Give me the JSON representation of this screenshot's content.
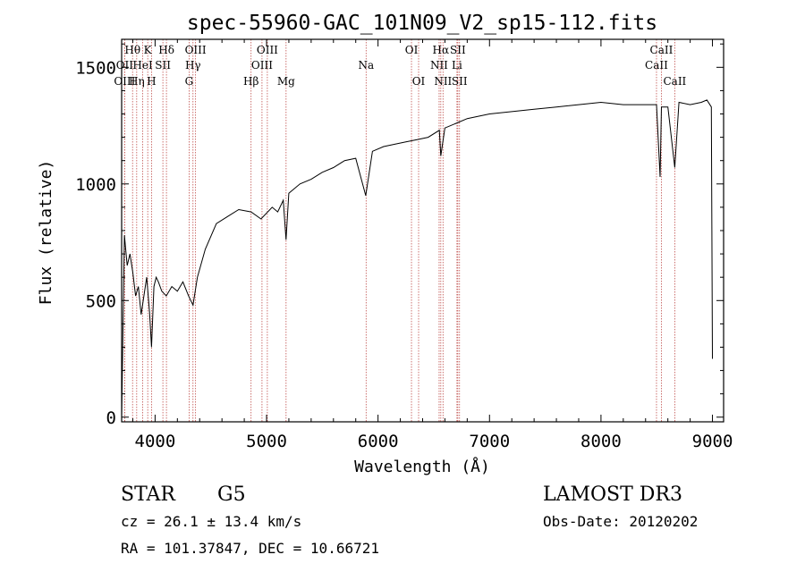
{
  "chart_data": {
    "type": "line",
    "title": "spec-55960-GAC_101N09_V2_sp15-112.fits",
    "xlabel": "Wavelength (Å)",
    "ylabel": "Flux (relative)",
    "xlim": [
      3700,
      9100
    ],
    "ylim": [
      -20,
      1620
    ],
    "x_ticks": [
      4000,
      5000,
      6000,
      7000,
      8000,
      9000
    ],
    "x_tick_labels": [
      "4000",
      "5000",
      "6000",
      "7000",
      "8000",
      "9000"
    ],
    "y_ticks": [
      0,
      500,
      1000,
      1500
    ],
    "y_tick_labels": [
      "0",
      "500",
      "1000",
      "1500"
    ],
    "grid": false,
    "legend": "none",
    "series_color": "#000000",
    "line_color": "#c0504d",
    "series": [
      {
        "x": [
          3700,
          3725,
          3750,
          3775,
          3800,
          3825,
          3850,
          3875,
          3900,
          3925,
          3950,
          3968,
          3990,
          4010,
          4030,
          4060,
          4100,
          4150,
          4200,
          4250,
          4300,
          4340,
          4380,
          4450,
          4550,
          4650,
          4750,
          4861,
          4950,
          5050,
          5100,
          5150,
          5175,
          5200,
          5300,
          5400,
          5500,
          5600,
          5700,
          5800,
          5890,
          5950,
          6050,
          6150,
          6250,
          6350,
          6450,
          6550,
          6563,
          6600,
          6700,
          6800,
          6900,
          7000,
          7200,
          7400,
          7600,
          7800,
          8000,
          8200,
          8400,
          8498,
          8530,
          8542,
          8560,
          8600,
          8662,
          8700,
          8800,
          8900,
          8950,
          8990,
          9000
        ],
        "y": [
          0,
          780,
          650,
          700,
          620,
          520,
          560,
          440,
          520,
          600,
          450,
          300,
          560,
          600,
          580,
          540,
          520,
          560,
          540,
          580,
          520,
          480,
          600,
          720,
          830,
          860,
          890,
          880,
          850,
          900,
          880,
          930,
          760,
          960,
          1000,
          1020,
          1050,
          1070,
          1100,
          1110,
          950,
          1140,
          1160,
          1170,
          1180,
          1190,
          1200,
          1230,
          1120,
          1240,
          1260,
          1280,
          1290,
          1300,
          1310,
          1320,
          1330,
          1340,
          1350,
          1340,
          1340,
          1340,
          1030,
          1330,
          1330,
          1330,
          1070,
          1350,
          1340,
          1350,
          1360,
          1330,
          250
        ]
      }
    ],
    "spectral_lines": [
      {
        "label": "Hθ",
        "x": 3798,
        "row": 0
      },
      {
        "label": "OII",
        "x": 3727,
        "row": 1
      },
      {
        "label": "OIII",
        "x": 3727,
        "row": 2
      },
      {
        "label": "Hη",
        "x": 3835,
        "row": 2
      },
      {
        "label": "HeI",
        "x": 3889,
        "row": 1
      },
      {
        "label": "K",
        "x": 3934,
        "row": 0
      },
      {
        "label": "H",
        "x": 3968,
        "row": 2
      },
      {
        "label": "SII",
        "x": 4070,
        "row": 1
      },
      {
        "label": "Hδ",
        "x": 4102,
        "row": 0
      },
      {
        "label": "OIII",
        "x": 4363,
        "row": 0
      },
      {
        "label": "Hγ",
        "x": 4340,
        "row": 1
      },
      {
        "label": "G",
        "x": 4305,
        "row": 2
      },
      {
        "label": "Hβ",
        "x": 4861,
        "row": 2
      },
      {
        "label": "OIII",
        "x": 5007,
        "row": 0
      },
      {
        "label": "OIII",
        "x": 4959,
        "row": 1
      },
      {
        "label": "Mg",
        "x": 5175,
        "row": 2
      },
      {
        "label": "Na",
        "x": 5893,
        "row": 1
      },
      {
        "label": "OI",
        "x": 6300,
        "row": 0
      },
      {
        "label": "OI",
        "x": 6364,
        "row": 2
      },
      {
        "label": "Hα",
        "x": 6563,
        "row": 0
      },
      {
        "label": "SII",
        "x": 6716,
        "row": 0
      },
      {
        "label": "NII",
        "x": 6548,
        "row": 1
      },
      {
        "label": "Li",
        "x": 6708,
        "row": 1
      },
      {
        "label": "NII",
        "x": 6583,
        "row": 2
      },
      {
        "label": "SII",
        "x": 6731,
        "row": 2
      },
      {
        "label": "CaII",
        "x": 8542,
        "row": 0
      },
      {
        "label": "CaII",
        "x": 8498,
        "row": 1
      },
      {
        "label": "CaII",
        "x": 8662,
        "row": 2
      }
    ]
  },
  "info": {
    "object_class": "STAR",
    "subclass": "G5",
    "survey": "LAMOST DR3",
    "cz": "cz = 26.1 ± 13.4 km/s",
    "obs_date": "Obs-Date: 20120202",
    "radec": "RA = 101.37847, DEC =  10.66721"
  }
}
